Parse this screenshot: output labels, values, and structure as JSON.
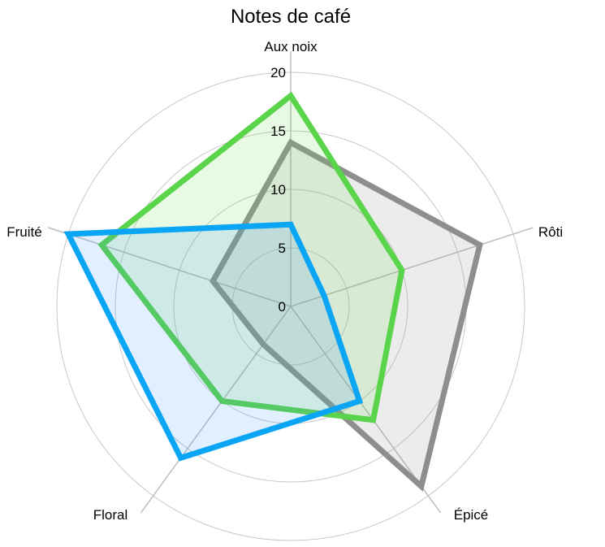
{
  "chart_data": {
    "type": "radar",
    "title": "Notes de café",
    "axes": [
      "Aux noix",
      "Rôti",
      "Épicé",
      "Floral",
      "Fruité"
    ],
    "rlim": [
      0,
      20
    ],
    "rticks": [
      0,
      5,
      10,
      15,
      20
    ],
    "grid": true,
    "series": [
      {
        "color": "#8e8e8e",
        "fill": "rgba(150,150,150,0.18)",
        "values": [
          14,
          17,
          19,
          4,
          7
        ]
      },
      {
        "color": "#5ad44a",
        "fill": "rgba(110,220,90,0.16)",
        "values": [
          18,
          10,
          12,
          10,
          17
        ]
      },
      {
        "color": "#0aa5f5",
        "fill": "rgba(60,150,245,0.15)",
        "values": [
          7,
          3,
          10,
          16,
          20
        ]
      }
    ]
  }
}
